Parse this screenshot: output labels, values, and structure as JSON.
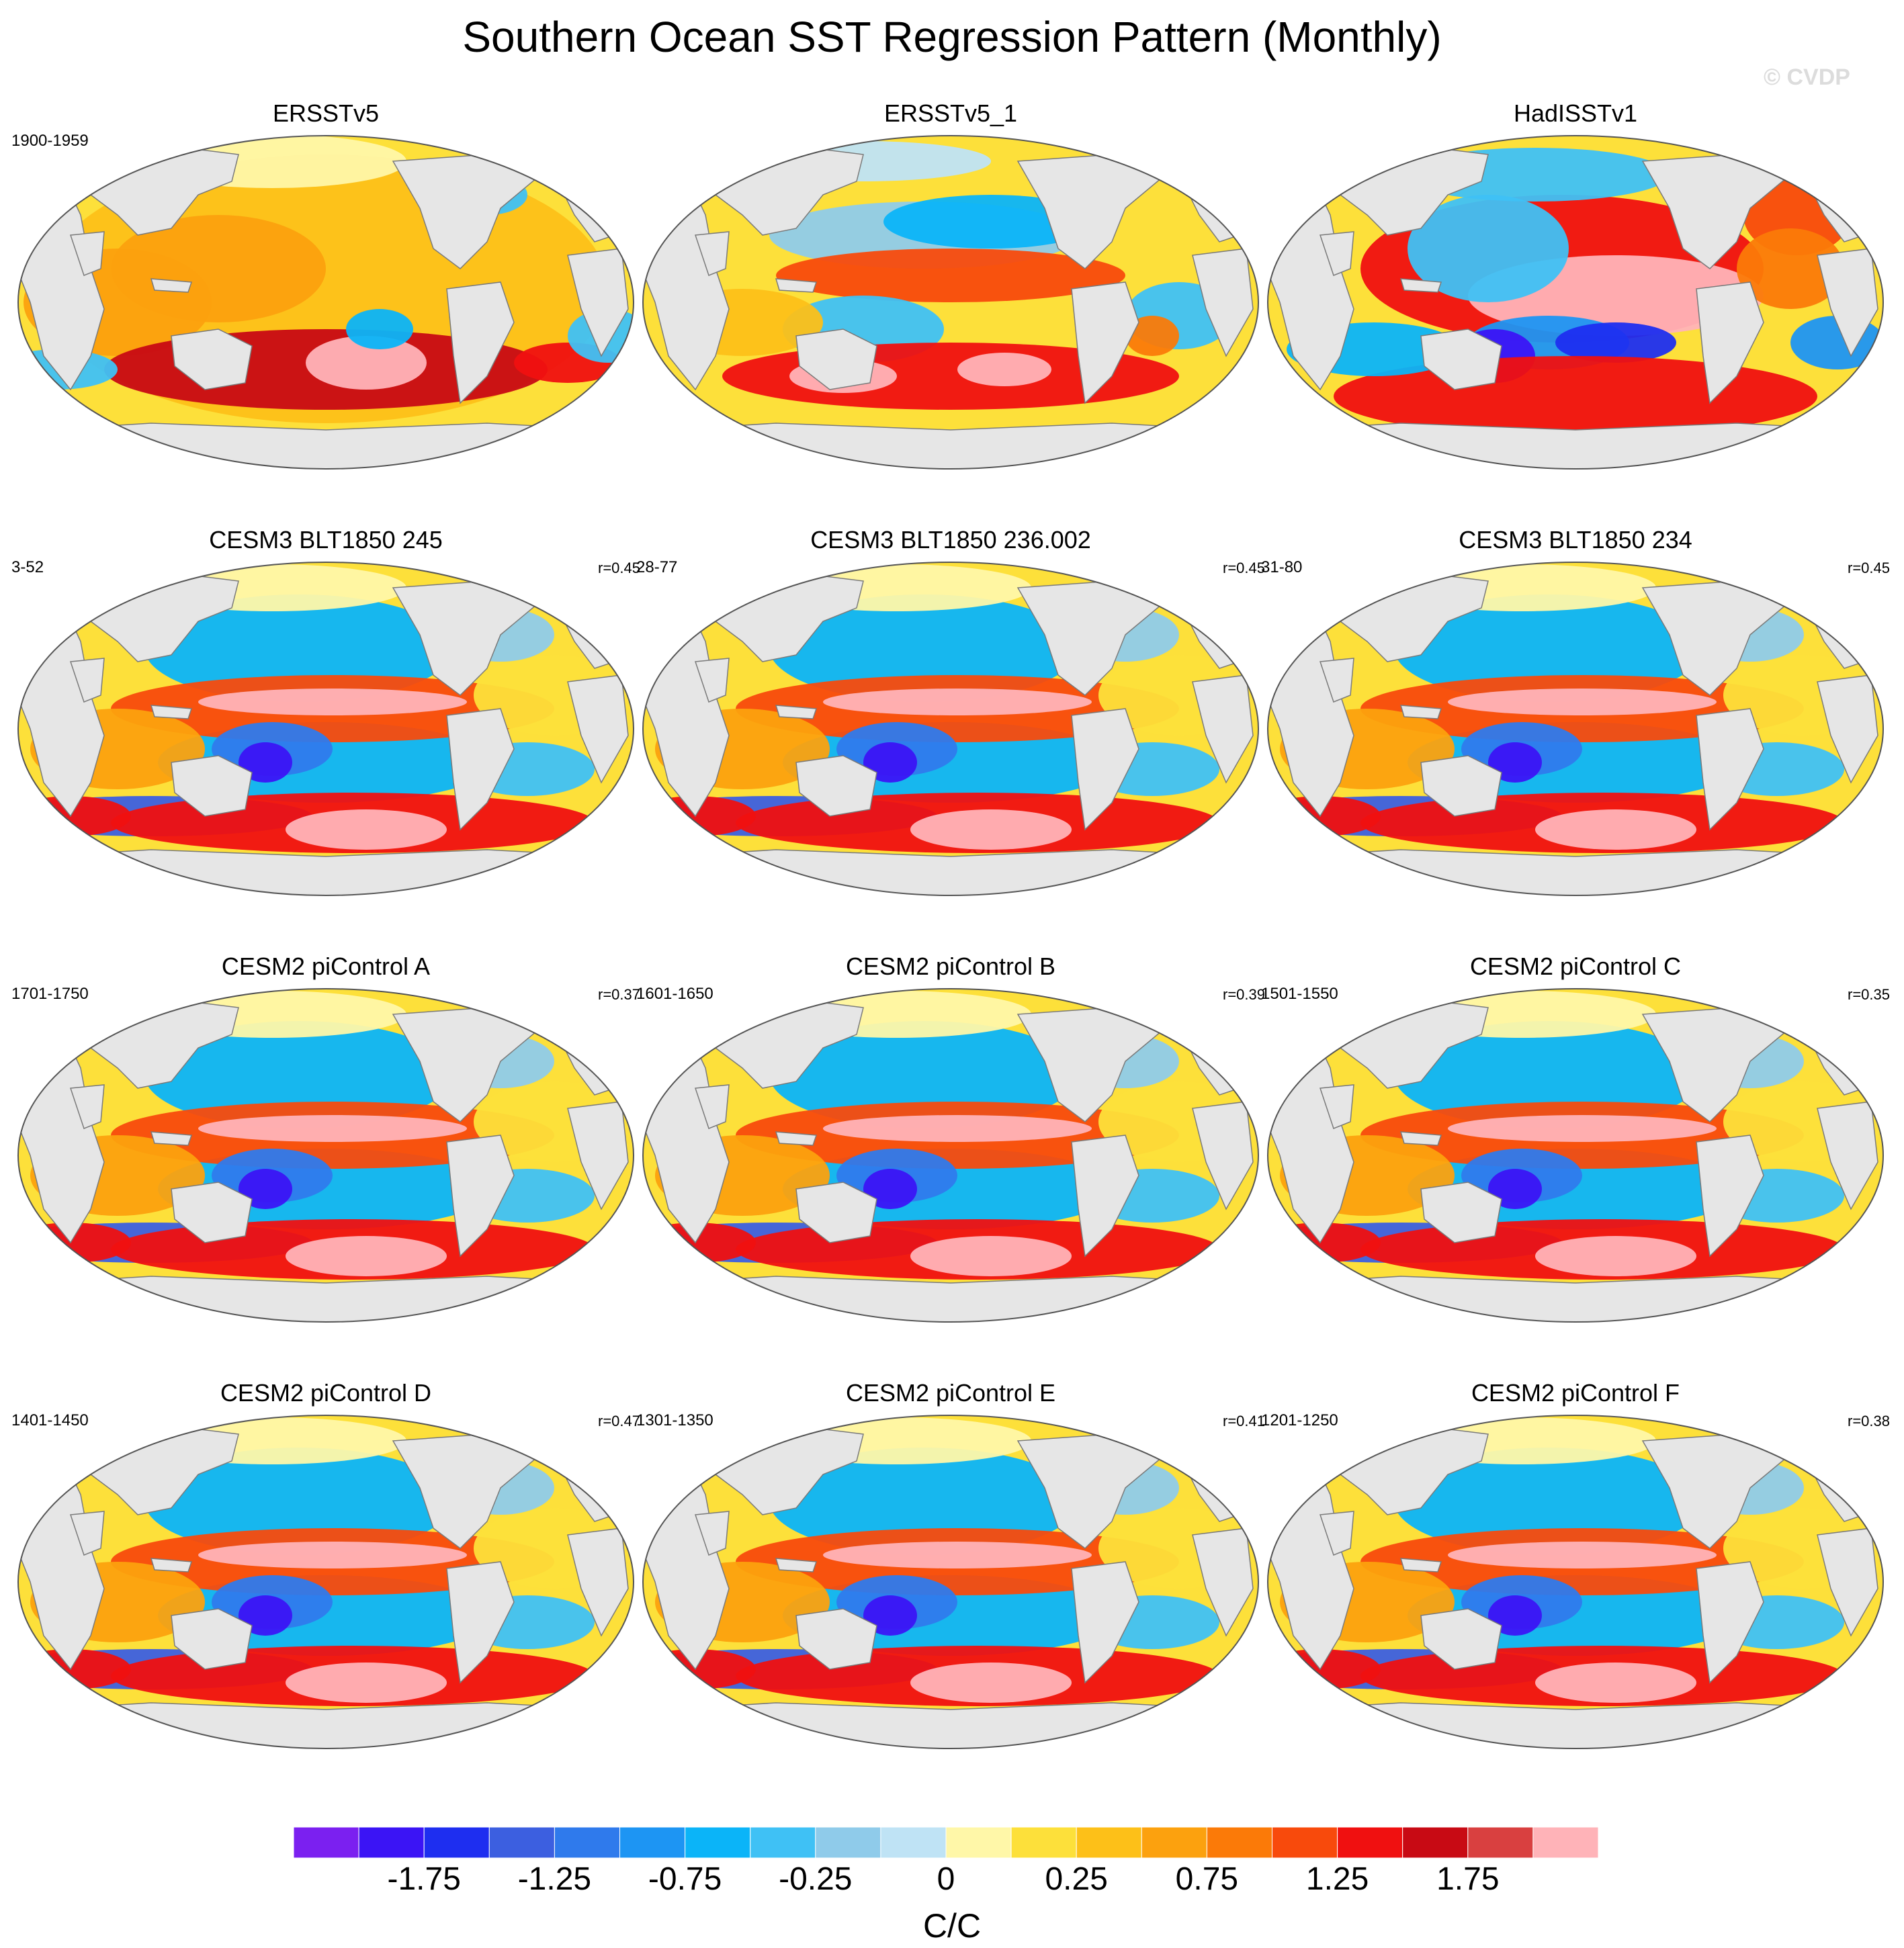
{
  "title": "Southern Ocean SST Regression Pattern (Monthly)",
  "watermark": "© CVDP",
  "panels": [
    {
      "title": "ERSSTv5",
      "period": "1900-1959",
      "corr": "",
      "pattern": "obs1"
    },
    {
      "title": "ERSSTv5_1",
      "period": "",
      "corr": "",
      "pattern": "obs2"
    },
    {
      "title": "HadISSTv1",
      "period": "",
      "corr": "",
      "pattern": "obs3"
    },
    {
      "title": "CESM3 BLT1850 245",
      "period": "3-52",
      "corr": "r=0.45",
      "pattern": "model"
    },
    {
      "title": "CESM3 BLT1850 236.002",
      "period": "28-77",
      "corr": "r=0.45",
      "pattern": "model"
    },
    {
      "title": "CESM3 BLT1850 234",
      "period": "31-80",
      "corr": "r=0.45",
      "pattern": "model"
    },
    {
      "title": "CESM2 piControl A",
      "period": "1701-1750",
      "corr": "r=0.37",
      "pattern": "model"
    },
    {
      "title": "CESM2 piControl B",
      "period": "1601-1650",
      "corr": "r=0.39",
      "pattern": "model"
    },
    {
      "title": "CESM2 piControl C",
      "period": "1501-1550",
      "corr": "r=0.35",
      "pattern": "model"
    },
    {
      "title": "CESM2 piControl D",
      "period": "1401-1450",
      "corr": "r=0.47",
      "pattern": "model"
    },
    {
      "title": "CESM2 piControl E",
      "period": "1301-1350",
      "corr": "r=0.41",
      "pattern": "model"
    },
    {
      "title": "CESM2 piControl F",
      "period": "1201-1250",
      "corr": "r=0.38",
      "pattern": "model"
    }
  ],
  "colorbar": {
    "colors": [
      "#7b20f0",
      "#3b14f5",
      "#1e2ef0",
      "#3c5fe0",
      "#2f7aec",
      "#1d95f3",
      "#0bb4f8",
      "#3fc1f5",
      "#8fcbea",
      "#bfe3f5",
      "#fff7a8",
      "#fde03a",
      "#fdc018",
      "#fca10e",
      "#fb7a08",
      "#f84a0c",
      "#f01010",
      "#c80a14",
      "#d94040",
      "#ffb3b8"
    ],
    "tick_labels": [
      "-1.75",
      "-1.25",
      "-0.75",
      "-0.25",
      "0",
      "0.25",
      "0.75",
      "1.25",
      "1.75"
    ],
    "units": "C/C"
  },
  "palette": {
    "land": "#e6e6e6",
    "coast": "#7a7a7a",
    "neutral_pos": "#fff7a8",
    "neutral_neg": "#bfe3f5"
  }
}
